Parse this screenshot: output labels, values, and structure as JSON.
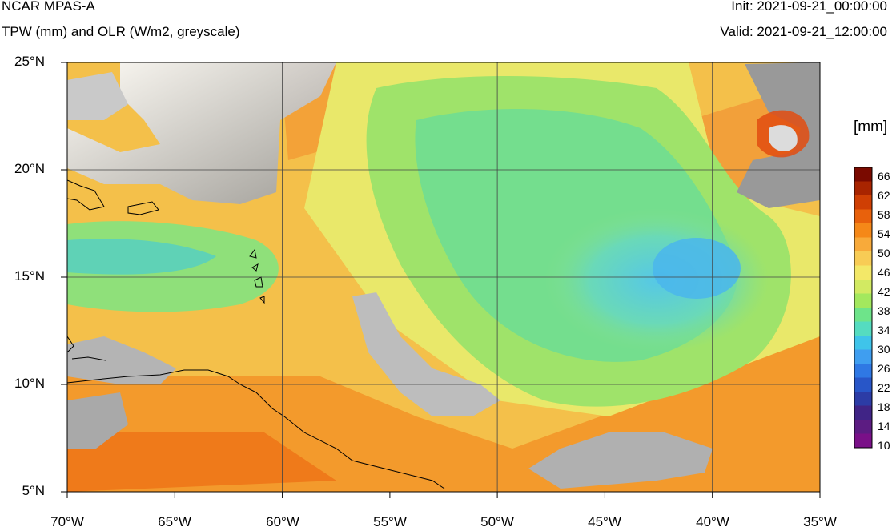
{
  "header": {
    "title": "NCAR MPAS-A",
    "subtitle": "TPW (mm) and OLR (W/m2, greyscale)",
    "init": "Init: 2021-09-21_00:00:00",
    "valid": "Valid: 2021-09-21_12:00:00"
  },
  "map": {
    "lat_labels": [
      "25°N",
      "20°N",
      "15°N",
      "10°N",
      "5°N"
    ],
    "lon_labels": [
      "70°W",
      "65°W",
      "60°W",
      "55°W",
      "50°W",
      "45°W",
      "40°W",
      "35°W"
    ],
    "lat_range": [
      5,
      25
    ],
    "lon_range": [
      -70,
      -35
    ],
    "gridline_step_deg": 5
  },
  "colorbar": {
    "unit": "[mm]",
    "levels": [
      "66",
      "62",
      "58",
      "54",
      "50",
      "46",
      "42",
      "38",
      "34",
      "30",
      "26",
      "22",
      "18",
      "14",
      "10"
    ],
    "colors": [
      "#7a0a00",
      "#a82400",
      "#cf3f04",
      "#e8610c",
      "#f58818",
      "#f8aa3a",
      "#f8cc55",
      "#f3e868",
      "#d2ea62",
      "#a3e85e",
      "#6ee48a",
      "#55dcc0",
      "#3fc4ea",
      "#3f9ef0",
      "#2f78e4",
      "#2856c8",
      "#2c3ca6",
      "#402486",
      "#5c1c82",
      "#7a1088"
    ],
    "accent_land": "#f3a742",
    "accent_moist": "#6cdf92",
    "cloud_grey": "#bdbdbd"
  }
}
